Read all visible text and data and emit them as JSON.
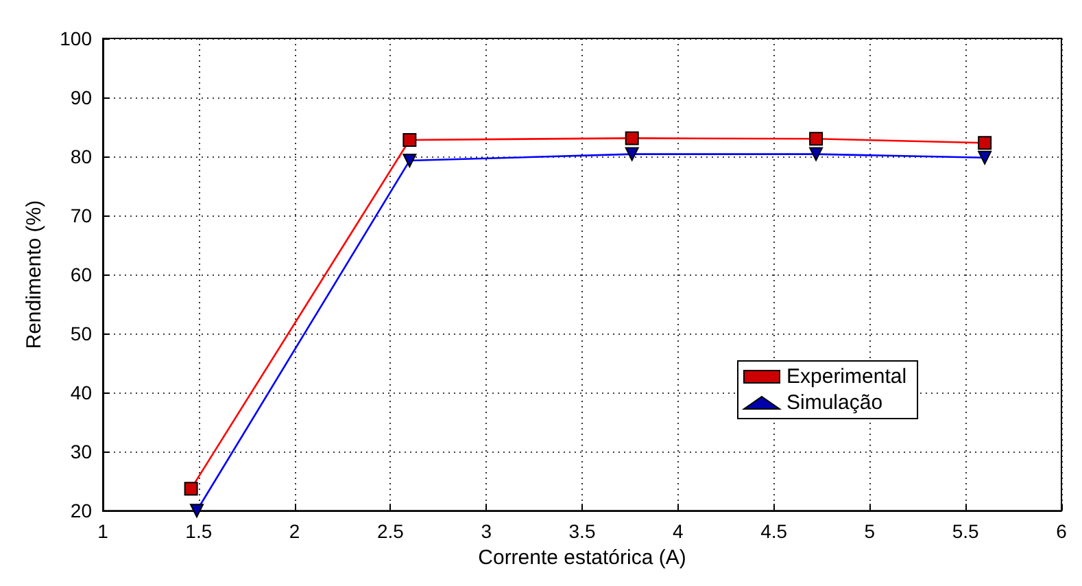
{
  "chart_data": {
    "type": "line",
    "xlabel": "Corrente estatórica (A)",
    "ylabel": "Rendimento (%)",
    "xlim": [
      1,
      6
    ],
    "xticks": [
      1,
      1.5,
      2,
      2.5,
      3,
      3.5,
      4,
      4.5,
      5,
      5.5,
      6
    ],
    "ylim": [
      20,
      100
    ],
    "yticks": [
      20,
      30,
      40,
      50,
      60,
      70,
      80,
      90,
      100
    ],
    "grid": true,
    "legend": "right",
    "line_style": "solid",
    "series": [
      {
        "name": "Experimental",
        "color": "#ff0000",
        "marker": "square",
        "x": [
          1.46,
          2.6,
          3.76,
          4.72,
          5.6
        ],
        "values": [
          23.7,
          82.8,
          83.1,
          83.0,
          82.3
        ]
      },
      {
        "name": "Simulação",
        "color": "#0000ff",
        "marker": "triangle",
        "x": [
          1.49,
          2.6,
          3.76,
          4.72,
          5.6
        ],
        "values": [
          20,
          79.3,
          80.4,
          80.4,
          79.8
        ]
      }
    ]
  }
}
